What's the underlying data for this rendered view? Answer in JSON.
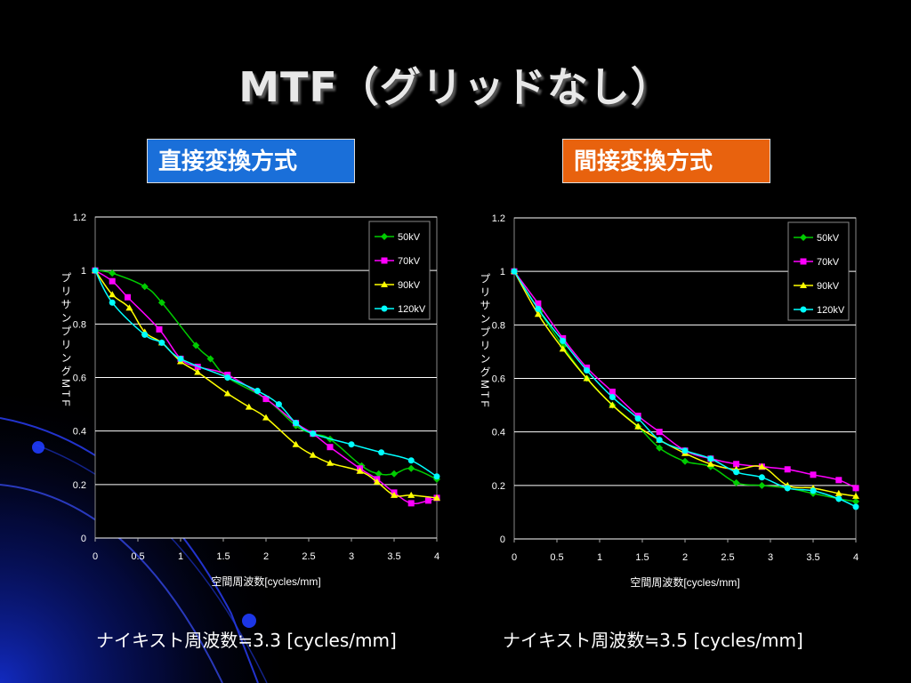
{
  "slide": {
    "title": "MTF（グリッドなし）",
    "left_method": "直接変換方式",
    "right_method": "間接変換方式",
    "left_nyquist": "ナイキスト周波数≒3.3 [cycles/mm]",
    "right_nyquist": "ナイキスト周波数≒3.5 [cycles/mm]"
  },
  "colors": {
    "background": "#000000",
    "left_method_bg": "#1a6fd9",
    "right_method_bg": "#e8620e",
    "plot_bg": "#000000",
    "grid": "#ffffff",
    "decor": "#1a2fd0"
  },
  "chart_data": [
    {
      "type": "line",
      "xlabel": "空間周波数[cycles/mm]",
      "ylabel": "プリサンプリングMTF",
      "xlim": [
        0,
        4
      ],
      "ylim": [
        0,
        1.2
      ],
      "xticks": [
        "0",
        "0.5",
        "1",
        "1.5",
        "2",
        "2.5",
        "3",
        "3.5",
        "4"
      ],
      "yticks": [
        "0",
        "0.2",
        "0.4",
        "0.6",
        "0.8",
        "1",
        "1.2"
      ],
      "grid": "horizontal",
      "legend_position": "top-right",
      "series": [
        {
          "name": "50kV",
          "color": "#00cc00",
          "marker": "diamond",
          "x": [
            0,
            0.2,
            0.58,
            0.78,
            1.18,
            1.35,
            1.55,
            2.0,
            2.35,
            2.55,
            2.75,
            3.12,
            3.32,
            3.5,
            3.7,
            4.0
          ],
          "y": [
            1.0,
            0.99,
            0.94,
            0.88,
            0.72,
            0.67,
            0.6,
            0.52,
            0.42,
            0.39,
            0.37,
            0.27,
            0.24,
            0.24,
            0.26,
            0.22
          ]
        },
        {
          "name": "70kV",
          "color": "#ff00ff",
          "marker": "square",
          "x": [
            0,
            0.2,
            0.38,
            0.75,
            1.0,
            1.2,
            1.55,
            2.0,
            2.35,
            2.55,
            2.75,
            3.1,
            3.3,
            3.5,
            3.7,
            3.9,
            4.0
          ],
          "y": [
            1.0,
            0.96,
            0.9,
            0.78,
            0.67,
            0.64,
            0.61,
            0.52,
            0.43,
            0.39,
            0.34,
            0.26,
            0.22,
            0.17,
            0.13,
            0.14,
            0.15
          ]
        },
        {
          "name": "90kV",
          "color": "#ffff00",
          "marker": "triangle",
          "x": [
            0,
            0.2,
            0.4,
            0.58,
            0.78,
            1.0,
            1.2,
            1.55,
            1.8,
            2.0,
            2.35,
            2.55,
            2.75,
            3.1,
            3.3,
            3.5,
            3.7,
            4.0
          ],
          "y": [
            1.0,
            0.91,
            0.86,
            0.77,
            0.73,
            0.66,
            0.62,
            0.54,
            0.49,
            0.45,
            0.35,
            0.31,
            0.28,
            0.25,
            0.21,
            0.16,
            0.16,
            0.15
          ]
        },
        {
          "name": "120kV",
          "color": "#00ffff",
          "marker": "circle",
          "x": [
            0,
            0.2,
            0.58,
            0.78,
            1.0,
            1.55,
            1.9,
            2.15,
            2.35,
            2.55,
            3.0,
            3.35,
            3.7,
            4.0
          ],
          "y": [
            1.0,
            0.88,
            0.76,
            0.73,
            0.67,
            0.6,
            0.55,
            0.5,
            0.43,
            0.39,
            0.35,
            0.32,
            0.29,
            0.23
          ]
        }
      ]
    },
    {
      "type": "line",
      "xlabel": "空間周波数[cycles/mm]",
      "ylabel": "プリサンプリングMTF",
      "xlim": [
        0,
        4
      ],
      "ylim": [
        0,
        1.2
      ],
      "xticks": [
        "0",
        "0.5",
        "1",
        "1.5",
        "2",
        "2.5",
        "3",
        "3.5",
        "4"
      ],
      "yticks": [
        "0",
        "0.2",
        "0.4",
        "0.6",
        "0.8",
        "1",
        "1.2"
      ],
      "grid": "horizontal",
      "legend_position": "top-right",
      "series": [
        {
          "name": "50kV",
          "color": "#00cc00",
          "marker": "diamond",
          "x": [
            0,
            0.3,
            0.57,
            0.85,
            1.15,
            1.45,
            1.7,
            2.0,
            2.3,
            2.6,
            2.9,
            3.2,
            3.5,
            3.8,
            4.0
          ],
          "y": [
            1.0,
            0.85,
            0.72,
            0.6,
            0.5,
            0.42,
            0.34,
            0.29,
            0.27,
            0.21,
            0.2,
            0.19,
            0.17,
            0.15,
            0.14
          ]
        },
        {
          "name": "70kV",
          "color": "#ff00ff",
          "marker": "square",
          "x": [
            0,
            0.28,
            0.57,
            0.85,
            1.15,
            1.45,
            1.7,
            2.0,
            2.3,
            2.6,
            2.9,
            3.2,
            3.5,
            3.8,
            4.0
          ],
          "y": [
            1.0,
            0.88,
            0.75,
            0.64,
            0.55,
            0.46,
            0.4,
            0.33,
            0.3,
            0.28,
            0.27,
            0.26,
            0.24,
            0.22,
            0.19
          ]
        },
        {
          "name": "90kV",
          "color": "#ffff00",
          "marker": "triangle",
          "x": [
            0,
            0.28,
            0.57,
            0.85,
            1.15,
            1.45,
            1.7,
            2.0,
            2.3,
            2.6,
            2.9,
            3.2,
            3.5,
            3.8,
            4.0
          ],
          "y": [
            1.0,
            0.84,
            0.71,
            0.6,
            0.5,
            0.42,
            0.37,
            0.32,
            0.28,
            0.26,
            0.27,
            0.2,
            0.19,
            0.17,
            0.16
          ]
        },
        {
          "name": "120kV",
          "color": "#00ffff",
          "marker": "circle",
          "x": [
            0,
            0.28,
            0.57,
            0.85,
            1.15,
            1.45,
            1.7,
            2.0,
            2.3,
            2.6,
            2.9,
            3.2,
            3.5,
            3.8,
            4.0
          ],
          "y": [
            1.0,
            0.86,
            0.74,
            0.63,
            0.53,
            0.45,
            0.37,
            0.33,
            0.3,
            0.25,
            0.23,
            0.19,
            0.18,
            0.15,
            0.12
          ]
        }
      ]
    }
  ]
}
